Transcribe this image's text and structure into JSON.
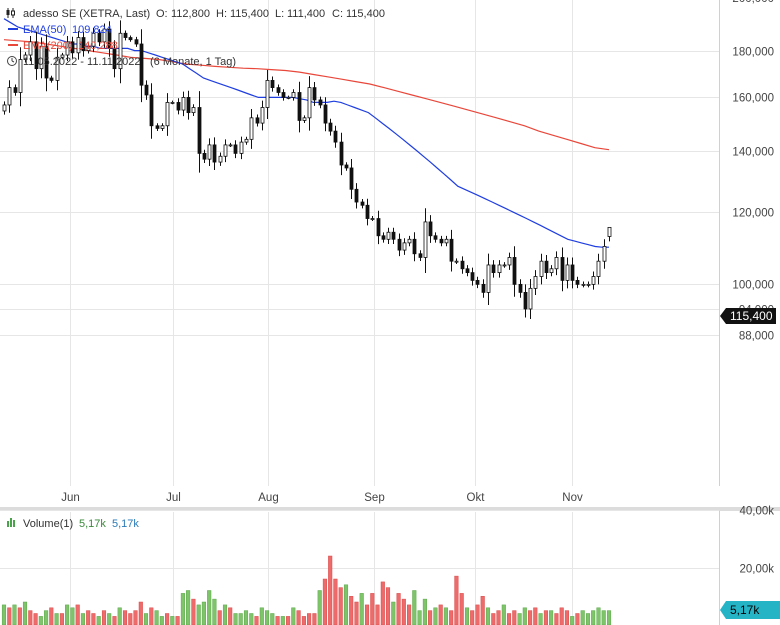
{
  "price_panel": {
    "legend": {
      "main": "adesso SE (XETRA, Last)",
      "ohlc": {
        "o_label": "O:",
        "o_value": "112,800",
        "h_label": "H:",
        "h_value": "115,400",
        "l_label": "L:",
        "l_value": "111,400",
        "c_label": "C:",
        "c_value": "115,400"
      },
      "ema50": {
        "label": "EMA(50)",
        "value": "109,824",
        "color": "#1f3ee0"
      },
      "ema200": {
        "label": "EMA(200)",
        "value": "140,288",
        "color": "#e8473a"
      },
      "range": {
        "dates": "11.05.2022 - 11.11.2022",
        "period": "(6 Monate, 1 Tag)"
      }
    },
    "y_ticks": [
      "88,000",
      "94,000",
      "100,000",
      "120,000",
      "140,000",
      "160,000",
      "180,000"
    ],
    "y_top_partial": "200,000",
    "x_ticks": [
      "Jun",
      "Jul",
      "Aug",
      "Sep",
      "Okt",
      "Nov"
    ],
    "last_price_tag": "115,400"
  },
  "volume_panel": {
    "legend": {
      "label": "Volume(1)",
      "value1": "5,17k",
      "value2": "5,17k"
    },
    "y_ticks": [
      "40,00k",
      "20,00k"
    ],
    "last_volume_tag": "5,17k",
    "up_color": "#7fc46a",
    "down_color": "#ee6b6b"
  },
  "chart_data": [
    {
      "type": "candlestick",
      "title": "adesso SE (XETRA, Last)",
      "period": "11.05.2022 - 11.11.2022",
      "y_scale": "log",
      "ylim": [
        85,
        200
      ],
      "last": {
        "open": 112.8,
        "high": 115.4,
        "low": 111.4,
        "close": 115.4
      },
      "ema50_last": 109.824,
      "ema200_last": 140.288,
      "closes": [
        157,
        164,
        162,
        176,
        178,
        184,
        172,
        182,
        168,
        167,
        177,
        178,
        184,
        179,
        186,
        180,
        182,
        188,
        184,
        190,
        181,
        172,
        188,
        186,
        185,
        183,
        165,
        161,
        149,
        148,
        149,
        158,
        158,
        155,
        160,
        154,
        156,
        139,
        137,
        142,
        136,
        138,
        142,
        142,
        139,
        143,
        144,
        152,
        150,
        156,
        167,
        164,
        162,
        160,
        160,
        162,
        151,
        152,
        164,
        159,
        157,
        150,
        147,
        143,
        135,
        134,
        127,
        123,
        122,
        118,
        118,
        113,
        112,
        114,
        112,
        109,
        111,
        112,
        108,
        107,
        117,
        113,
        112,
        111,
        112,
        106,
        106,
        104,
        103,
        101,
        100,
        98,
        105,
        103,
        105,
        105,
        107,
        100,
        98,
        94,
        99,
        102,
        106,
        103,
        104,
        107,
        101,
        105,
        101,
        100,
        100,
        100,
        102,
        106,
        110,
        115
      ],
      "ema50": [
        195,
        193,
        191,
        190,
        189,
        188,
        187,
        186,
        185,
        184,
        183,
        183,
        182,
        182,
        181,
        181,
        181,
        181,
        181,
        180,
        180,
        179,
        178,
        177,
        176,
        175,
        174,
        172,
        170,
        168,
        167,
        166,
        165,
        164,
        163,
        162,
        161,
        160,
        160,
        160,
        160,
        160,
        160,
        159.5,
        159,
        158,
        158,
        158,
        158.5,
        158,
        157,
        156,
        155,
        154,
        152,
        150,
        148,
        146,
        144,
        142,
        140,
        138,
        136,
        134,
        132,
        130,
        128,
        127,
        126,
        125,
        124,
        123,
        122,
        121,
        120,
        119,
        118,
        117,
        116,
        115,
        114,
        113,
        112,
        111.5,
        111,
        110.5,
        110,
        109.8,
        109.8
      ],
      "ema200": [
        185,
        184.5,
        184,
        183,
        182,
        181,
        180,
        179,
        178,
        177,
        176.5,
        176,
        175,
        174,
        173.5,
        173,
        172.6,
        172.2,
        172,
        171.6,
        171.2,
        170.5,
        169.5,
        168.5,
        167.5,
        166.5,
        165.5,
        164,
        162.5,
        161,
        159.5,
        158,
        156.5,
        155,
        153.5,
        152,
        150.5,
        149,
        147,
        145.5,
        144,
        142.5,
        141,
        140.3
      ],
      "ema_x_range": [
        "11.05.2022",
        "11.11.2022"
      ]
    },
    {
      "type": "bar",
      "title": "Volume(1)",
      "ylim": [
        0,
        40
      ],
      "y_unit": "k",
      "last_value": 5.17,
      "values": [
        7,
        6,
        7,
        6,
        8,
        5,
        4,
        3,
        5,
        6,
        4,
        4,
        7,
        6,
        7,
        4,
        5,
        4,
        3,
        5,
        4,
        3,
        6,
        5,
        4,
        5,
        8,
        4,
        6,
        5,
        3,
        4,
        3,
        3,
        11,
        12,
        9,
        7,
        8,
        12,
        9,
        5,
        7,
        6,
        4,
        4,
        5,
        4,
        3,
        6,
        5,
        4,
        3,
        3,
        3,
        6,
        5,
        3,
        4,
        4,
        12,
        16,
        24,
        16,
        13,
        14,
        10,
        8,
        11,
        7,
        11,
        7,
        15,
        13,
        8,
        11,
        9,
        7,
        12,
        5,
        9,
        5,
        6,
        7,
        6,
        5,
        17,
        11,
        6,
        5,
        7,
        10,
        6,
        4,
        5,
        7,
        4,
        5,
        4,
        6,
        5,
        6,
        4,
        5,
        5,
        4,
        6,
        5,
        3,
        4,
        5,
        4,
        5,
        6,
        5,
        5
      ],
      "down_days": [
        1,
        3,
        5,
        6,
        9,
        11,
        14,
        16,
        17,
        19,
        21,
        23,
        24,
        25,
        26,
        28,
        31,
        33,
        36,
        41,
        43,
        48,
        52,
        54,
        56,
        57,
        58,
        59,
        61,
        62,
        63,
        64,
        66,
        67,
        69,
        70,
        71,
        72,
        73,
        75,
        76,
        77,
        81,
        83,
        85,
        86,
        87,
        89,
        90,
        91,
        93,
        94,
        96,
        97,
        100,
        101,
        103,
        105,
        106,
        107,
        109
      ]
    }
  ]
}
